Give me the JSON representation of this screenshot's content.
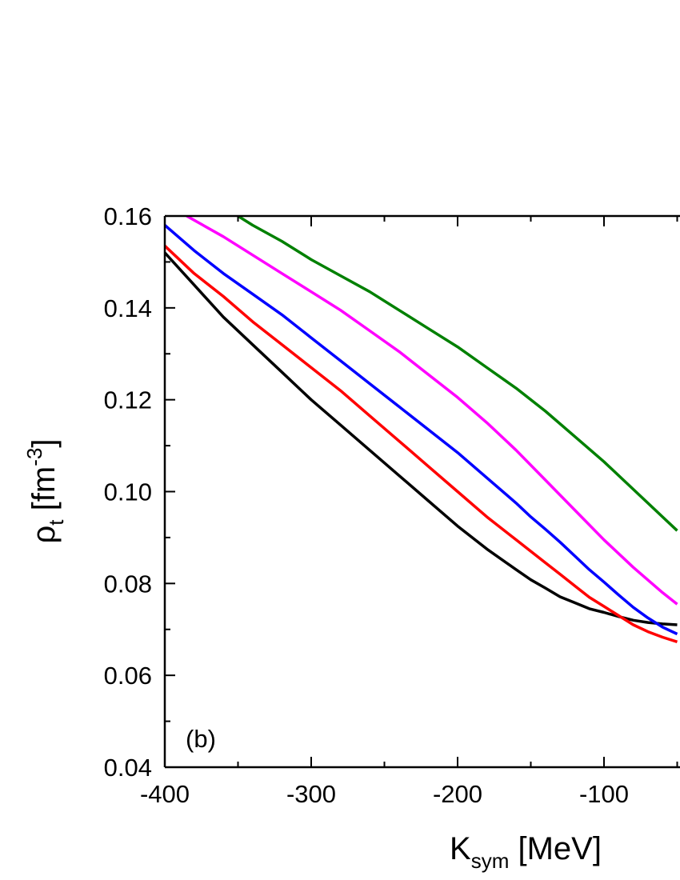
{
  "chart_data": {
    "type": "line",
    "panel_label": "(b)",
    "xlabel": {
      "main": "K",
      "sub": "sym",
      "rest": " [MeV]"
    },
    "ylabel": {
      "main": "ρ",
      "sub": "t",
      "rest": " [fm",
      "sup": "-3",
      "end": "]"
    },
    "xlim": [
      -400,
      -50
    ],
    "ylim": [
      0.04,
      0.16
    ],
    "xticks": [
      -400,
      -300,
      -200,
      -100
    ],
    "xtick_labels": [
      "-400",
      "-300",
      "-200",
      "-100"
    ],
    "yticks": [
      0.04,
      0.06,
      0.08,
      0.1,
      0.12,
      0.14,
      0.16
    ],
    "ytick_labels": [
      "0.04",
      "0.06",
      "0.08",
      "0.10",
      "0.12",
      "0.14",
      "0.16"
    ],
    "grid": false,
    "series": [
      {
        "color": "#000000",
        "x": [
          -400,
          -380,
          -360,
          -340,
          -320,
          -300,
          -280,
          -260,
          -240,
          -220,
          -200,
          -180,
          -160,
          -150,
          -140,
          -130,
          -120,
          -110,
          -100,
          -90,
          -80,
          -70,
          -60,
          -50
        ],
        "y": [
          0.152,
          0.145,
          0.138,
          0.132,
          0.126,
          0.12,
          0.1145,
          0.109,
          0.1035,
          0.098,
          0.0925,
          0.0875,
          0.083,
          0.0808,
          0.079,
          0.0771,
          0.0758,
          0.0745,
          0.0737,
          0.0728,
          0.072,
          0.0715,
          0.0712,
          0.071
        ]
      },
      {
        "color": "#ff0000",
        "x": [
          -400,
          -380,
          -360,
          -340,
          -320,
          -300,
          -280,
          -260,
          -240,
          -220,
          -200,
          -180,
          -160,
          -150,
          -140,
          -130,
          -120,
          -110,
          -100,
          -90,
          -80,
          -70,
          -60,
          -50
        ],
        "y": [
          0.1535,
          0.1475,
          0.1425,
          0.137,
          0.132,
          0.127,
          0.122,
          0.1165,
          0.111,
          0.1055,
          0.1,
          0.0945,
          0.0895,
          0.087,
          0.0845,
          0.082,
          0.0795,
          0.077,
          0.075,
          0.073,
          0.071,
          0.0695,
          0.0683,
          0.0673
        ]
      },
      {
        "color": "#0000ff",
        "x": [
          -400,
          -380,
          -360,
          -340,
          -320,
          -300,
          -280,
          -260,
          -240,
          -220,
          -200,
          -180,
          -160,
          -150,
          -140,
          -130,
          -120,
          -110,
          -100,
          -90,
          -80,
          -70,
          -60,
          -50
        ],
        "y": [
          0.158,
          0.1525,
          0.1475,
          0.143,
          0.1385,
          0.1335,
          0.1285,
          0.1235,
          0.1185,
          0.1135,
          0.1085,
          0.103,
          0.0975,
          0.0945,
          0.0918,
          0.089,
          0.086,
          0.083,
          0.0803,
          0.0775,
          0.0748,
          0.0725,
          0.0705,
          0.069
        ]
      },
      {
        "color": "#ff00ff",
        "x": [
          -385,
          -360,
          -340,
          -320,
          -300,
          -280,
          -260,
          -240,
          -220,
          -200,
          -180,
          -160,
          -140,
          -120,
          -100,
          -80,
          -60,
          -50
        ],
        "y": [
          0.16,
          0.1555,
          0.1515,
          0.1475,
          0.1435,
          0.1395,
          0.135,
          0.1305,
          0.1255,
          0.1205,
          0.115,
          0.109,
          0.1025,
          0.096,
          0.0895,
          0.0835,
          0.078,
          0.0755
        ]
      },
      {
        "color": "#008000",
        "x": [
          -350,
          -340,
          -320,
          -300,
          -280,
          -260,
          -240,
          -220,
          -200,
          -180,
          -160,
          -140,
          -120,
          -100,
          -80,
          -60,
          -50
        ],
        "y": [
          0.16,
          0.158,
          0.1545,
          0.1505,
          0.147,
          0.1435,
          0.1395,
          0.1355,
          0.1315,
          0.127,
          0.1225,
          0.1175,
          0.112,
          0.1065,
          0.1005,
          0.0945,
          0.0915
        ]
      }
    ]
  }
}
